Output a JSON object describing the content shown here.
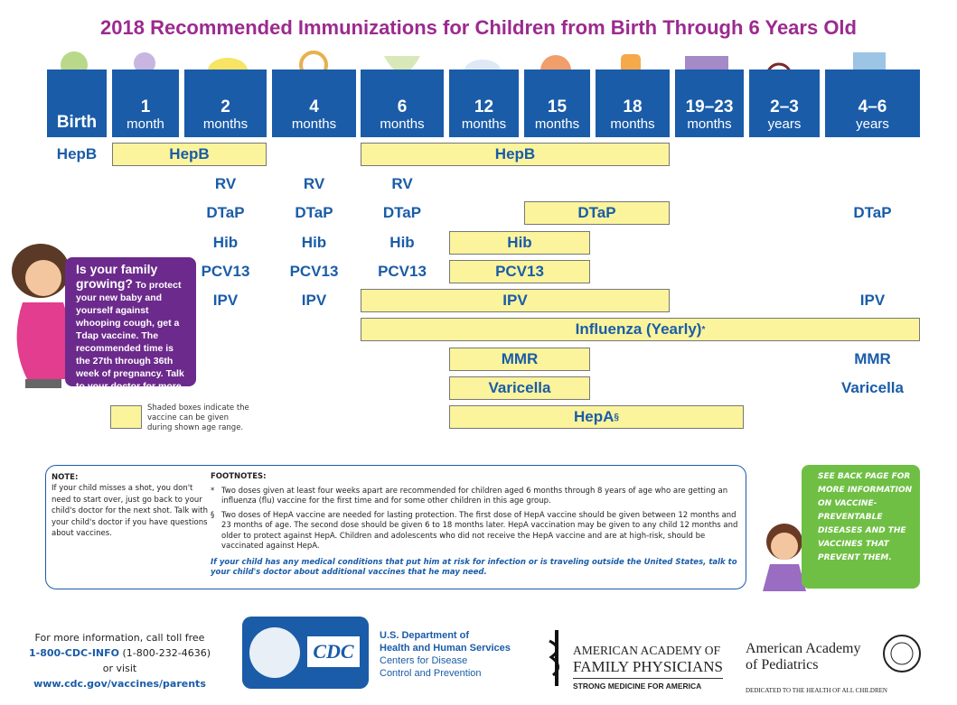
{
  "title": "2018 Recommended Immunizations for Children from Birth Through 6 Years Old",
  "ages": [
    {
      "number": "Birth"
    },
    {
      "number": "1",
      "unit": "month"
    },
    {
      "number": "2",
      "unit": "months"
    },
    {
      "number": "4",
      "unit": "months"
    },
    {
      "number": "6",
      "unit": "months"
    },
    {
      "number": "12",
      "unit": "months"
    },
    {
      "number": "15",
      "unit": "months"
    },
    {
      "number": "18",
      "unit": "months"
    },
    {
      "number": "19–23",
      "unit": "months"
    },
    {
      "number": "2–3",
      "unit": "years"
    },
    {
      "number": "4–6",
      "unit": "years"
    }
  ],
  "vaccines": [
    [
      {
        "label": "HepB"
      },
      {
        "label": "HepB"
      },
      {
        "label": "HepB"
      }
    ],
    [
      {
        "label": "RV"
      },
      {
        "label": "RV"
      },
      {
        "label": "RV"
      }
    ],
    [
      {
        "label": "DTaP"
      },
      {
        "label": "DTaP"
      },
      {
        "label": "DTaP"
      },
      {
        "label": "DTaP"
      },
      {
        "label": "DTaP"
      }
    ],
    [
      {
        "label": "Hib"
      },
      {
        "label": "Hib"
      },
      {
        "label": "Hib"
      },
      {
        "label": "Hib"
      }
    ],
    [
      {
        "label": "PCV13"
      },
      {
        "label": "PCV13"
      },
      {
        "label": "PCV13"
      },
      {
        "label": "PCV13"
      }
    ],
    [
      {
        "label": "IPV"
      },
      {
        "label": "IPV"
      },
      {
        "label": "IPV"
      },
      {
        "label": "IPV"
      }
    ],
    [
      {
        "label": "Influenza (Yearly)",
        "sup": "*"
      }
    ],
    [
      {
        "label": "MMR"
      },
      {
        "label": "MMR"
      }
    ],
    [
      {
        "label": "Varicella"
      },
      {
        "label": "Varicella"
      }
    ],
    [
      {
        "label": "HepA",
        "sup": "§"
      }
    ]
  ],
  "callout": {
    "heading": "Is your family growing?",
    "body": "To protect your new baby and yourself against whooping cough, get a Tdap vaccine. The recommended time is the 27th through 36th week of pregnancy. Talk to your doctor for more details."
  },
  "legend": "Shaded boxes indicate the vaccine can be given during shown age range.",
  "note": {
    "title": "NOTE:",
    "text": "If your child misses a shot, you don't need to start over, just go back to your child's doctor for the next shot. Talk with your child's doctor if you have questions about vaccines."
  },
  "footnotes": {
    "title": "FOOTNOTES:",
    "items": [
      {
        "mark": "*",
        "text": "Two doses given at least four weeks apart are recommended for children aged 6 months through 8 years of age who are getting an influenza (flu) vaccine for the first time and for some other children in this age group."
      },
      {
        "mark": "§",
        "text": "Two doses of HepA vaccine are needed for lasting protection. The first dose of HepA vaccine should be given between 12 months and 23 months of age. The second dose should be given 6 to 18 months later. HepA vaccination may be given to any child 12 months and older to protect against HepA. Children and adolescents who did not receive the HepA vaccine and are at high-risk, should be vaccinated against HepA."
      }
    ],
    "warning": "If your child has any medical conditions that put him at risk for infection or is traveling outside the United States, talk to your child's doctor about additional vaccines that he may need."
  },
  "side_note": "See back page for more information on vaccine-preventable diseases and the vaccines that prevent them.",
  "contact": {
    "intro": "For more information, call toll free",
    "phone": "1-800-CDC-INFO",
    "phone_number": "(1-800-232-4636)",
    "or": "or visit",
    "url": "www.cdc.gov/vaccines/parents"
  },
  "cdc": {
    "logo": "CDC",
    "lines": [
      "U.S. Department of",
      "Health and Human Services",
      "Centers for Disease",
      "Control and Prevention"
    ]
  },
  "aafp": {
    "lines": [
      "AMERICAN ACADEMY OF",
      "FAMILY PHYSICIANS"
    ],
    "tagline": "STRONG MEDICINE FOR AMERICA"
  },
  "aap": {
    "lines": [
      "American Academy",
      "of Pediatrics"
    ],
    "tagline": "DEDICATED TO THE HEALTH OF ALL CHILDREN"
  }
}
